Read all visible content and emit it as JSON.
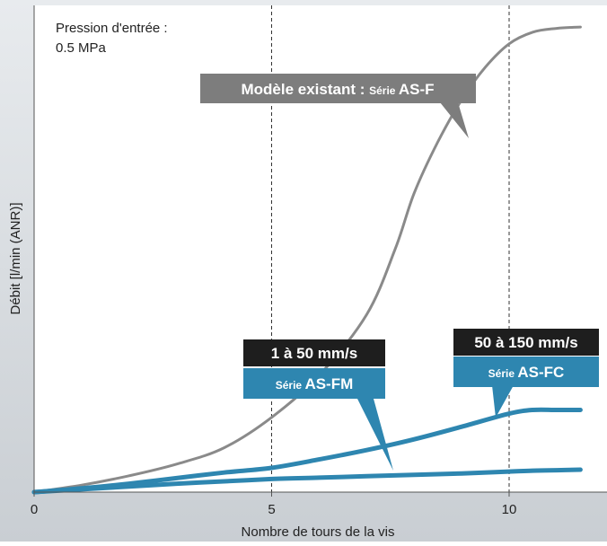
{
  "chart_data": {
    "type": "line",
    "title": "",
    "xlabel": "Nombre de tours de la vis",
    "ylabel": "Débit [l/min (ANR)]",
    "xlim": [
      0,
      11.5
    ],
    "ylim": [
      0,
      100
    ],
    "x_ticks": [
      "0",
      "5",
      "10"
    ],
    "x_tick_values": [
      0,
      5,
      10
    ],
    "y_ticks": [],
    "reference_lines_x": [
      5,
      10
    ],
    "grid": false,
    "annotation": {
      "line1": "Pression d'entrée :",
      "line2": "0.5 MPa"
    },
    "series": [
      {
        "name": "Modèle existant : Série AS-F",
        "color": "#8a8a8a",
        "x": [
          0,
          1,
          2,
          3,
          4,
          5,
          6,
          7,
          7.6,
          8,
          8.5,
          9,
          9.5,
          10,
          10.5,
          11,
          11.5
        ],
        "y": [
          0,
          1.5,
          3.5,
          6,
          9.5,
          16,
          25,
          38,
          52,
          64,
          75,
          84,
          91,
          96,
          98.5,
          99.3,
          99.6
        ]
      },
      {
        "name": "Série AS-FM",
        "color": "#2e86b0",
        "x": [
          0,
          1,
          2,
          3,
          4,
          5,
          6,
          7,
          8,
          9,
          10,
          10.5,
          11,
          11.5
        ],
        "y": [
          0,
          0.6,
          1.2,
          1.8,
          2.3,
          2.8,
          3.1,
          3.4,
          3.7,
          4.0,
          4.4,
          4.6,
          4.7,
          4.8
        ]
      },
      {
        "name": "Série AS-FC",
        "color": "#2e86b0",
        "x": [
          0,
          1,
          2,
          3,
          4,
          5,
          6,
          7,
          8,
          9,
          10,
          10.5,
          11,
          11.5
        ],
        "y": [
          0,
          0.8,
          1.8,
          3.0,
          4.2,
          5.2,
          7.0,
          9.0,
          11.3,
          14.0,
          16.8,
          17.6,
          17.6,
          17.6
        ]
      }
    ]
  },
  "callouts": {
    "asf": {
      "main": "Modèle existant : ",
      "small": "Série ",
      "bold": "AS-F"
    },
    "asfm": {
      "header": "1 à 50 mm/s",
      "small": "Série ",
      "bold": "AS-FM"
    },
    "asfc": {
      "header": "50 à 150 mm/s",
      "small": "Série ",
      "bold": "AS-FC"
    }
  },
  "colors": {
    "background": "#dde1e5",
    "gray_series": "#8a8a8a",
    "blue_series": "#2e86b0",
    "gray_callout": "#7d7d7d",
    "dark_header": "#1e1e1e"
  }
}
